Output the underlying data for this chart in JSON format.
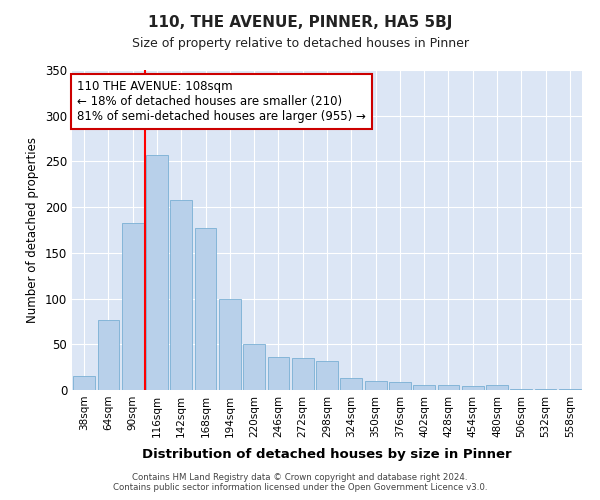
{
  "title": "110, THE AVENUE, PINNER, HA5 5BJ",
  "subtitle": "Size of property relative to detached houses in Pinner",
  "xlabel": "Distribution of detached houses by size in Pinner",
  "ylabel": "Number of detached properties",
  "categories": [
    "38sqm",
    "64sqm",
    "90sqm",
    "116sqm",
    "142sqm",
    "168sqm",
    "194sqm",
    "220sqm",
    "246sqm",
    "272sqm",
    "298sqm",
    "324sqm",
    "350sqm",
    "376sqm",
    "402sqm",
    "428sqm",
    "454sqm",
    "480sqm",
    "506sqm",
    "532sqm",
    "558sqm"
  ],
  "values": [
    15,
    77,
    183,
    257,
    208,
    177,
    100,
    50,
    36,
    35,
    32,
    13,
    10,
    9,
    5,
    5,
    4,
    6,
    1,
    1,
    1
  ],
  "bar_color": "#b8d0ea",
  "bar_edgecolor": "#7aafd4",
  "redline_x": 2.5,
  "annotation_text": "110 THE AVENUE: 108sqm\n← 18% of detached houses are smaller (210)\n81% of semi-detached houses are larger (955) →",
  "annotation_box_facecolor": "#ffffff",
  "annotation_box_edgecolor": "#cc0000",
  "ylim": [
    0,
    350
  ],
  "yticks": [
    0,
    50,
    100,
    150,
    200,
    250,
    300,
    350
  ],
  "background_color": "#dce6f5",
  "footer_line1": "Contains HM Land Registry data © Crown copyright and database right 2024.",
  "footer_line2": "Contains public sector information licensed under the Open Government Licence v3.0."
}
